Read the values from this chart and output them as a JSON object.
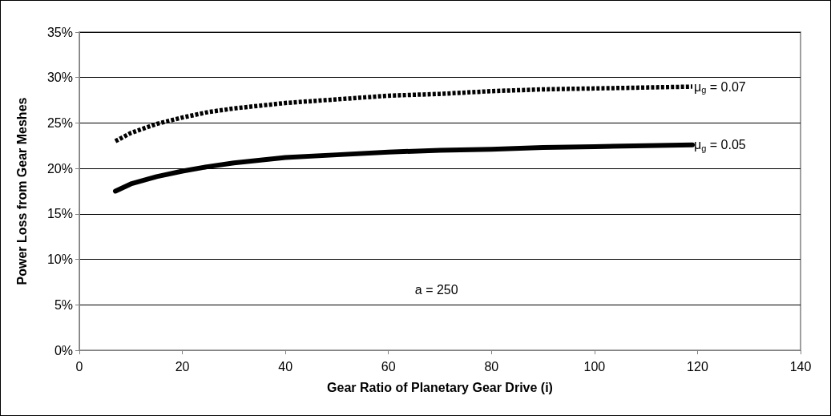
{
  "chart_data": {
    "type": "line",
    "xlabel": "Gear Ratio of Planetary Gear Drive (i)",
    "ylabel": "Power Loss from Gear Meshes",
    "x": [
      7,
      10,
      15,
      20,
      25,
      30,
      40,
      50,
      60,
      70,
      80,
      90,
      100,
      110,
      119
    ],
    "series": [
      {
        "name": "μ$_{g}$ = 0.07",
        "color": "#000000",
        "line_style": "dashed",
        "values": [
          23.0,
          23.9,
          24.9,
          25.6,
          26.2,
          26.6,
          27.2,
          27.6,
          28.0,
          28.2,
          28.5,
          28.7,
          28.8,
          28.9,
          29.0
        ]
      },
      {
        "name": "μ$_{g}$ = 0.05",
        "color": "#000000",
        "line_style": "solid",
        "values": [
          17.5,
          18.3,
          19.1,
          19.7,
          20.2,
          20.6,
          21.2,
          21.5,
          21.8,
          22.0,
          22.1,
          22.3,
          22.4,
          22.5,
          22.6
        ]
      }
    ],
    "xlim": [
      0,
      140
    ],
    "xticks": [
      0,
      20,
      40,
      60,
      80,
      100,
      120,
      140
    ],
    "ylim": [
      0,
      35
    ],
    "yticks": [
      {
        "value": 0,
        "label": "0%"
      },
      {
        "value": 5,
        "label": "5%"
      },
      {
        "value": 10,
        "label": "10%"
      },
      {
        "value": 15,
        "label": "15%"
      },
      {
        "value": 20,
        "label": "20%"
      },
      {
        "value": 25,
        "label": "25%"
      },
      {
        "value": 30,
        "label": "30%"
      },
      {
        "value": 35,
        "label": "35%"
      }
    ],
    "annotations": [
      "a = 250"
    ],
    "grid": "y",
    "legend": false,
    "marker": "none"
  }
}
